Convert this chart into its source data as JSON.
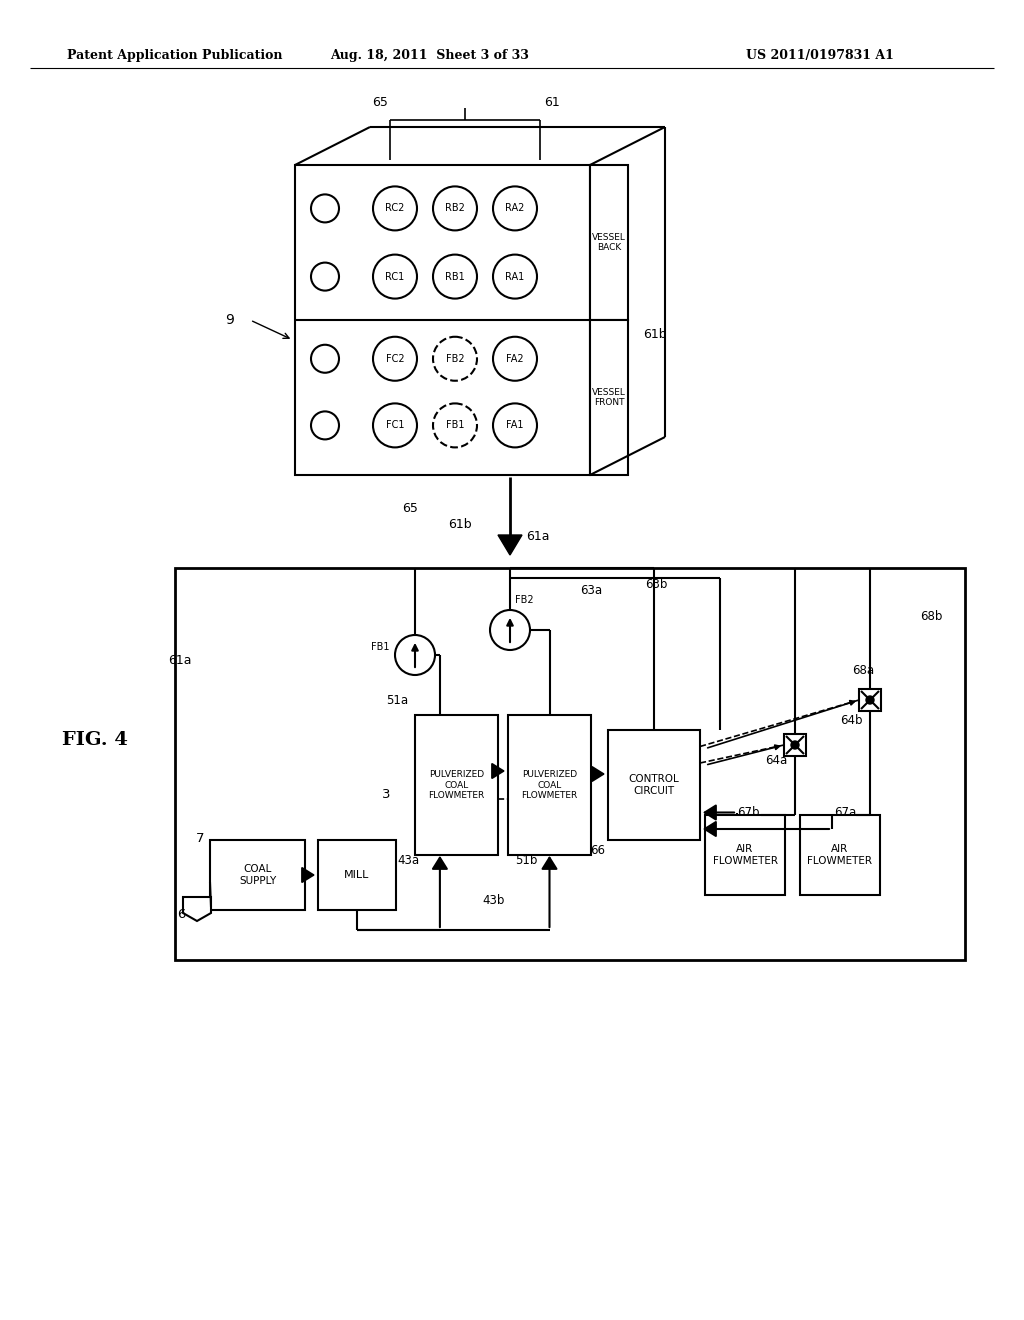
{
  "header_left": "Patent Application Publication",
  "header_mid": "Aug. 18, 2011  Sheet 3 of 33",
  "header_right": "US 2011/0197831 A1",
  "fig_label": "FIG. 4",
  "bg_color": "#ffffff",
  "line_color": "#000000"
}
